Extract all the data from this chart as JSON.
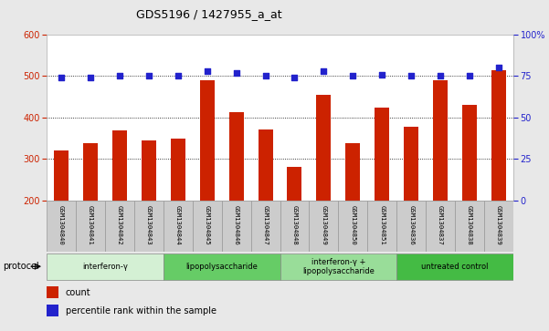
{
  "title": "GDS5196 / 1427955_a_at",
  "samples": [
    "GSM1304840",
    "GSM1304841",
    "GSM1304842",
    "GSM1304843",
    "GSM1304844",
    "GSM1304845",
    "GSM1304846",
    "GSM1304847",
    "GSM1304848",
    "GSM1304849",
    "GSM1304850",
    "GSM1304851",
    "GSM1304836",
    "GSM1304837",
    "GSM1304838",
    "GSM1304839"
  ],
  "counts": [
    320,
    338,
    368,
    345,
    348,
    490,
    412,
    372,
    280,
    455,
    338,
    425,
    378,
    490,
    430,
    515
  ],
  "percentiles": [
    74,
    74,
    75,
    75,
    75,
    78,
    77,
    75,
    74,
    78,
    75,
    76,
    75,
    75,
    75,
    80
  ],
  "groups": [
    {
      "label": "interferon-γ",
      "start": 0,
      "end": 4,
      "color": "#d4f0d4"
    },
    {
      "label": "lipopolysaccharide",
      "start": 4,
      "end": 8,
      "color": "#66cc66"
    },
    {
      "label": "interferon-γ +\nlipopolysaccharide",
      "start": 8,
      "end": 12,
      "color": "#99dd99"
    },
    {
      "label": "untreated control",
      "start": 12,
      "end": 16,
      "color": "#44bb44"
    }
  ],
  "ylim_left": [
    200,
    600
  ],
  "ylim_right": [
    0,
    100
  ],
  "yticks_left": [
    200,
    300,
    400,
    500,
    600
  ],
  "yticks_right": [
    0,
    25,
    50,
    75,
    100
  ],
  "bar_color": "#cc2200",
  "dot_color": "#2222cc",
  "bg_color": "#e8e8e8",
  "plot_bg": "#ffffff",
  "axis_color_left": "#cc2200",
  "axis_color_right": "#2222cc",
  "legend_count_label": "count",
  "legend_pct_label": "percentile rank within the sample",
  "protocol_label": "protocol"
}
